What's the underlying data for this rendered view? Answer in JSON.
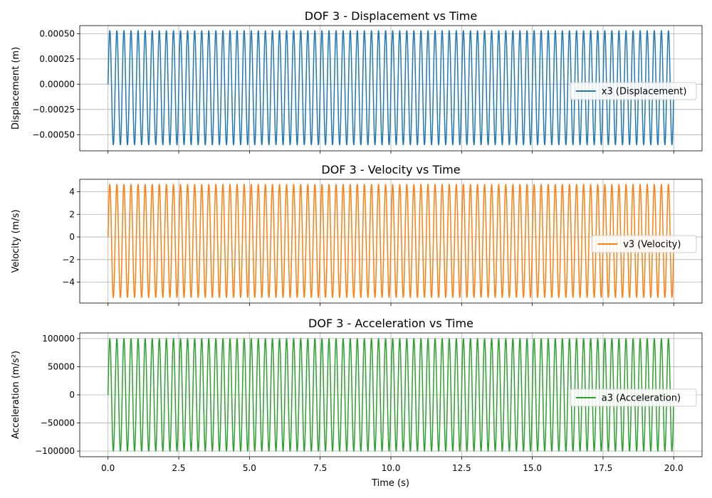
{
  "figure": {
    "xlabel": "Time (s)"
  },
  "chart_data": [
    {
      "type": "line",
      "title": "DOF 3 - Displacement vs Time",
      "xlabel": "",
      "ylabel": "Displacement (m)",
      "xlim": [
        -1.0,
        21.0
      ],
      "ylim": [
        -0.00066,
        0.00058
      ],
      "xticks": [
        0,
        2.5,
        5,
        7.5,
        10,
        12.5,
        15,
        17.5,
        20
      ],
      "xtick_labels": [],
      "yticks": [
        0.0005,
        0.00025,
        0,
        -0.00025,
        -0.0005
      ],
      "ytick_labels": [
        "0.00050",
        "0.00025",
        "0.00000",
        "−0.00025",
        "−0.00050"
      ],
      "grid": true,
      "legend_position": "center-right",
      "series": [
        {
          "name": "x3 (Displacement)",
          "color": "#1f77b4",
          "x_range": [
            0,
            20
          ],
          "cycles": 80,
          "start_value": 0,
          "max": 0.00053,
          "min": -0.0006
        }
      ]
    },
    {
      "type": "line",
      "title": "DOF 3 - Velocity vs Time",
      "xlabel": "",
      "ylabel": "Velocity (m/s)",
      "xlim": [
        -1.0,
        21.0
      ],
      "ylim": [
        -5.85,
        5.1
      ],
      "xticks": [
        0,
        2.5,
        5,
        7.5,
        10,
        12.5,
        15,
        17.5,
        20
      ],
      "xtick_labels": [],
      "yticks": [
        4,
        2,
        0,
        -2,
        -4
      ],
      "ytick_labels": [
        "4",
        "2",
        "0",
        "−2",
        "−4"
      ],
      "grid": true,
      "legend_position": "center-right",
      "series": [
        {
          "name": "v3 (Velocity)",
          "color": "#ff7f0e",
          "x_range": [
            0,
            20
          ],
          "cycles": 80,
          "start_value": 0,
          "max": 4.65,
          "min": -5.35
        }
      ]
    },
    {
      "type": "line",
      "title": "DOF 3 - Acceleration vs Time",
      "xlabel": "Time (s)",
      "ylabel": "Acceleration (m/s²)",
      "xlim": [
        -1.0,
        21.0
      ],
      "ylim": [
        -110000,
        110000
      ],
      "xticks": [
        0,
        2.5,
        5,
        7.5,
        10,
        12.5,
        15,
        17.5,
        20
      ],
      "xtick_labels": [
        "0.0",
        "2.5",
        "5.0",
        "7.5",
        "10.0",
        "12.5",
        "15.0",
        "17.5",
        "20.0"
      ],
      "yticks": [
        100000,
        50000,
        0,
        -50000,
        -100000
      ],
      "ytick_labels": [
        "100000",
        "50000",
        "0",
        "−50000",
        "−100000"
      ],
      "grid": true,
      "legend_position": "center-right",
      "series": [
        {
          "name": "a3 (Acceleration)",
          "color": "#2ca02c",
          "x_range": [
            0,
            20
          ],
          "cycles": 80,
          "start_value": 0,
          "max": 100000,
          "min": -100000
        }
      ]
    }
  ]
}
